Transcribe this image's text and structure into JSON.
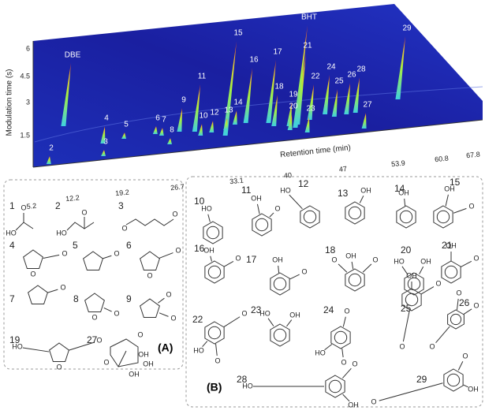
{
  "chromatogram": {
    "x_label": "Retention time (min)",
    "y_label": "Modulation time (s)",
    "x_ticks": [
      "5.2",
      "12.2",
      "19.2",
      "26.7",
      "33.1",
      "40",
      "47",
      "53.9",
      "60.8",
      "67.8"
    ],
    "y_ticks": [
      "1.5",
      "3",
      "4.5",
      "6"
    ],
    "peaks": [
      "DBE",
      "15",
      "BHT",
      "29",
      "16",
      "17",
      "21",
      "11",
      "9",
      "18",
      "19",
      "22",
      "24",
      "25",
      "26",
      "28",
      "20",
      "23",
      "27",
      "10",
      "12",
      "13",
      "14",
      "6",
      "7",
      "8",
      "5",
      "4",
      "3",
      "2"
    ]
  },
  "panel_a": {
    "label": "(A)",
    "compounds": [
      {
        "number": "1",
        "atoms": [
          "HO",
          "O"
        ]
      },
      {
        "number": "2",
        "atoms": [
          "HO",
          "O"
        ]
      },
      {
        "number": "3",
        "atoms": [
          "O",
          "O"
        ]
      },
      {
        "number": "4",
        "atoms": [
          "O",
          "O"
        ]
      },
      {
        "number": "5",
        "atoms": [
          "O"
        ]
      },
      {
        "number": "6",
        "atoms": [
          "O",
          "O"
        ]
      },
      {
        "number": "7",
        "atoms": [
          "O"
        ]
      },
      {
        "number": "8",
        "atoms": [
          "O",
          "O"
        ]
      },
      {
        "number": "9",
        "atoms": [
          "O",
          "O"
        ]
      },
      {
        "number": "19",
        "atoms": [
          "HO",
          "O",
          "O"
        ]
      },
      {
        "number": "27",
        "atoms": [
          "O",
          "O",
          "OH",
          "OH",
          "OH"
        ]
      }
    ]
  },
  "panel_b": {
    "label": "(B)",
    "compounds": [
      {
        "number": "10",
        "atoms": [
          "HO"
        ]
      },
      {
        "number": "11",
        "atoms": [
          "OH",
          "O"
        ]
      },
      {
        "number": "12",
        "atoms": [
          "HO"
        ]
      },
      {
        "number": "13",
        "atoms": [
          "OH"
        ]
      },
      {
        "number": "14",
        "atoms": [
          "OH"
        ]
      },
      {
        "number": "15",
        "atoms": [
          "OH",
          "O"
        ]
      },
      {
        "number": "16",
        "atoms": [
          "OH",
          "O"
        ]
      },
      {
        "number": "17",
        "atoms": [
          "OH",
          "O"
        ]
      },
      {
        "number": "18",
        "atoms": [
          "O",
          "OH",
          "O"
        ]
      },
      {
        "number": "20",
        "atoms": [
          "HO",
          "OH"
        ]
      },
      {
        "number": "21",
        "atoms": [
          "OH",
          "O"
        ]
      },
      {
        "number": "22",
        "atoms": [
          "O",
          "HO",
          "O"
        ]
      },
      {
        "number": "23",
        "atoms": [
          "HO",
          "OH"
        ]
      },
      {
        "number": "24",
        "atoms": [
          "O",
          "HO",
          "O"
        ]
      },
      {
        "number": "25",
        "atoms": [
          "OH",
          "O",
          "O"
        ]
      },
      {
        "number": "26",
        "atoms": [
          "O",
          "O",
          "O"
        ]
      },
      {
        "number": "28",
        "atoms": [
          "HO",
          "O",
          "OH"
        ]
      },
      {
        "number": "29",
        "atoms": [
          "O",
          "O",
          "OH"
        ]
      }
    ]
  }
}
